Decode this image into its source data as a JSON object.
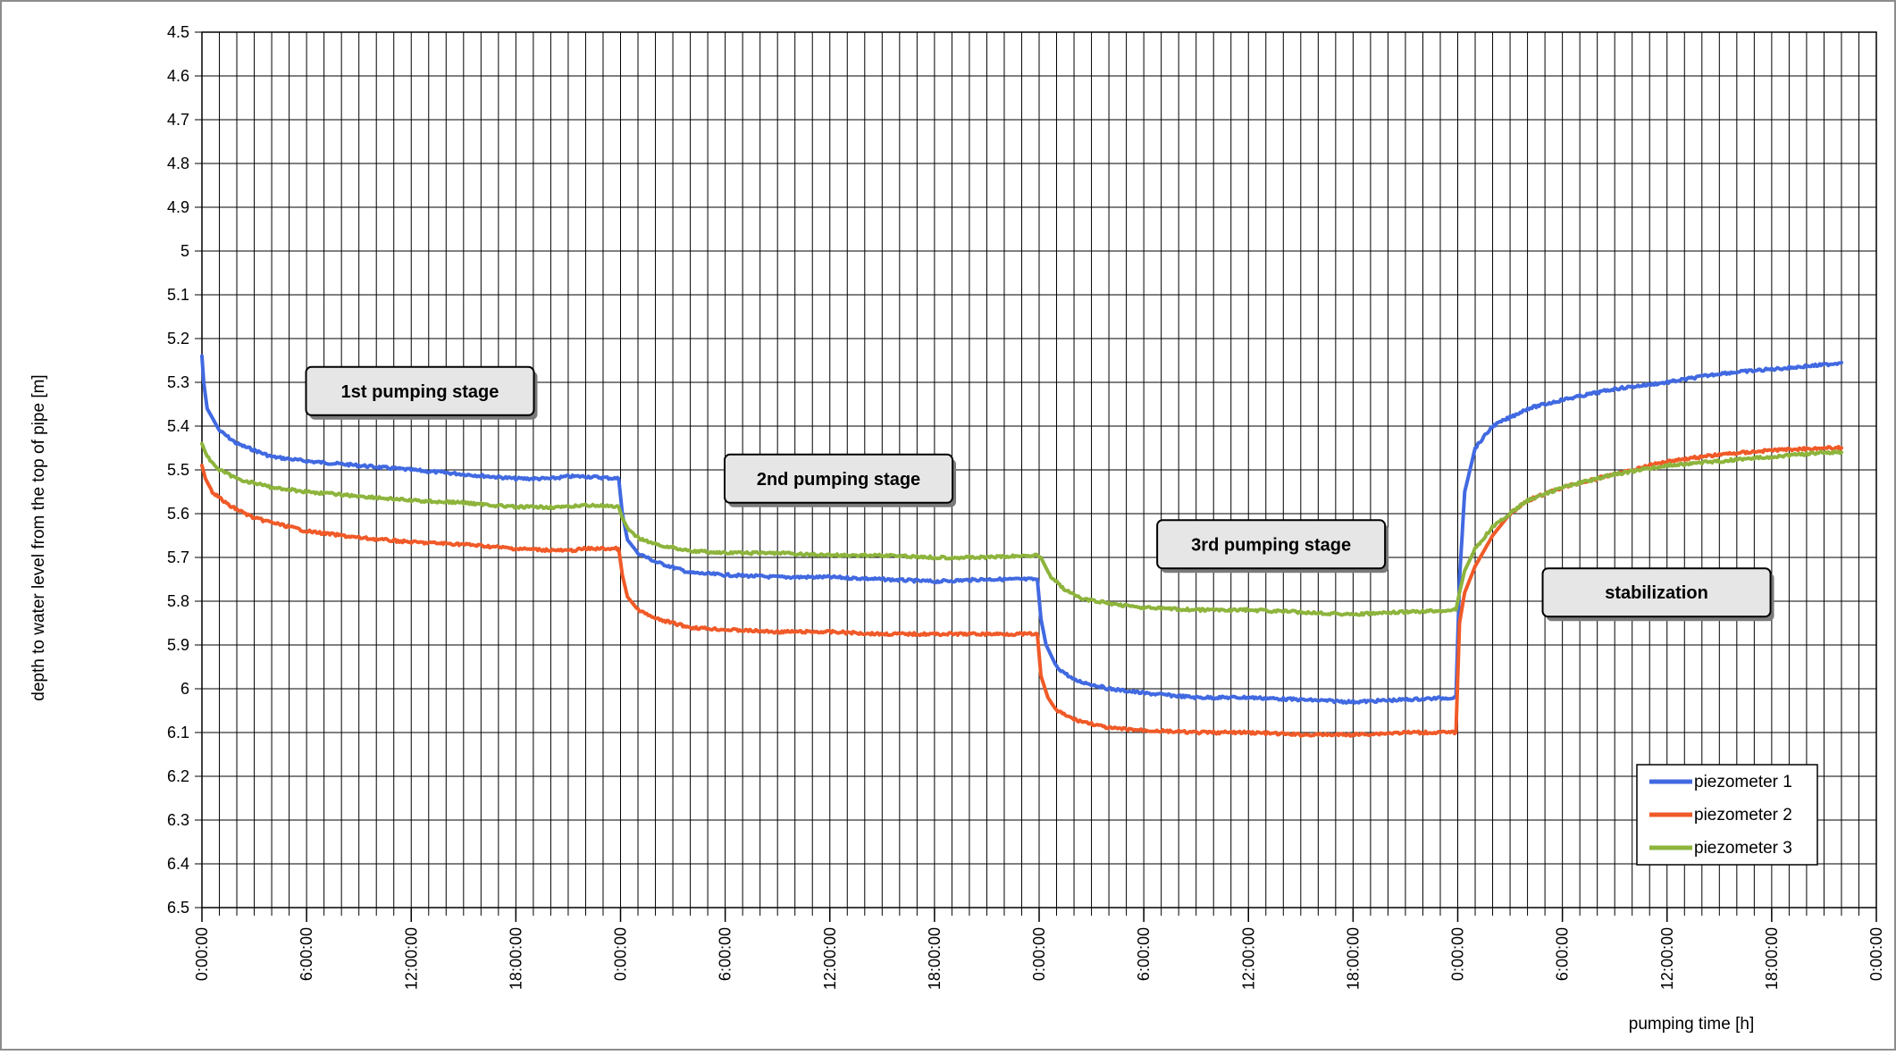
{
  "chart_data": {
    "type": "line",
    "title": "",
    "xlabel": "pumping time [h]",
    "ylabel": "depth to water level from the top of pipe [m]",
    "x_unit": "hours",
    "xlim": [
      0,
      96
    ],
    "ylim": [
      4.5,
      6.5
    ],
    "y_inverted": true,
    "y_ticks": [
      "4.5",
      "4.6",
      "4.7",
      "4.8",
      "4.9",
      "5",
      "5.1",
      "5.2",
      "5.3",
      "5.4",
      "5.5",
      "5.6",
      "5.7",
      "5.8",
      "5.9",
      "6",
      "6.1",
      "6.2",
      "6.3",
      "6.4",
      "6.5"
    ],
    "x_tick_labels": [
      "0:00:00",
      "6:00:00",
      "12:00:00",
      "18:00:00",
      "0:00:00",
      "6:00:00",
      "12:00:00",
      "18:00:00",
      "0:00:00",
      "6:00:00",
      "12:00:00",
      "18:00:00",
      "0:00:00",
      "6:00:00",
      "12:00:00",
      "18:00:00",
      "0:00:00"
    ],
    "x_tick_values": [
      0,
      6,
      12,
      18,
      24,
      30,
      36,
      42,
      48,
      54,
      60,
      66,
      72,
      78,
      84,
      90,
      96
    ],
    "grid": true,
    "legend_position": "bottom-right",
    "annotations": [
      {
        "text": "1st pumping stage",
        "x": 12.5,
        "y": 5.32
      },
      {
        "text": "2nd pumping stage",
        "x": 36.5,
        "y": 5.52
      },
      {
        "text": "3rd pumping stage",
        "x": 61.3,
        "y": 5.67
      },
      {
        "text": "stabilization",
        "x": 83.4,
        "y": 5.78
      }
    ],
    "series": [
      {
        "name": "piezometer 1",
        "color": "#4169e1",
        "points": [
          [
            0,
            5.24
          ],
          [
            0.1,
            5.3
          ],
          [
            0.3,
            5.36
          ],
          [
            1,
            5.41
          ],
          [
            2,
            5.44
          ],
          [
            4,
            5.47
          ],
          [
            6,
            5.48
          ],
          [
            9,
            5.49
          ],
          [
            12,
            5.5
          ],
          [
            15,
            5.51
          ],
          [
            18,
            5.52
          ],
          [
            20,
            5.52
          ],
          [
            21,
            5.515
          ],
          [
            22,
            5.515
          ],
          [
            23.9,
            5.52
          ],
          [
            24.1,
            5.6
          ],
          [
            24.4,
            5.66
          ],
          [
            25,
            5.69
          ],
          [
            26,
            5.71
          ],
          [
            28,
            5.735
          ],
          [
            30,
            5.74
          ],
          [
            33,
            5.745
          ],
          [
            36,
            5.745
          ],
          [
            39,
            5.75
          ],
          [
            42,
            5.755
          ],
          [
            45,
            5.75
          ],
          [
            47.9,
            5.75
          ],
          [
            48.1,
            5.84
          ],
          [
            48.4,
            5.9
          ],
          [
            49,
            5.95
          ],
          [
            50,
            5.98
          ],
          [
            52,
            6.0
          ],
          [
            54,
            6.01
          ],
          [
            57,
            6.02
          ],
          [
            60,
            6.02
          ],
          [
            63,
            6.025
          ],
          [
            66,
            6.03
          ],
          [
            69,
            6.025
          ],
          [
            71.9,
            6.02
          ],
          [
            72.1,
            5.75
          ],
          [
            72.4,
            5.55
          ],
          [
            73,
            5.45
          ],
          [
            74,
            5.4
          ],
          [
            76,
            5.36
          ],
          [
            78,
            5.34
          ],
          [
            81,
            5.315
          ],
          [
            84,
            5.3
          ],
          [
            87,
            5.28
          ],
          [
            90,
            5.27
          ],
          [
            93,
            5.26
          ],
          [
            94,
            5.255
          ]
        ]
      },
      {
        "name": "piezometer 2",
        "color": "#f05a28",
        "points": [
          [
            0,
            5.49
          ],
          [
            0.2,
            5.52
          ],
          [
            0.6,
            5.55
          ],
          [
            1.5,
            5.58
          ],
          [
            3,
            5.61
          ],
          [
            6,
            5.64
          ],
          [
            9,
            5.655
          ],
          [
            12,
            5.665
          ],
          [
            15,
            5.67
          ],
          [
            18,
            5.68
          ],
          [
            21,
            5.685
          ],
          [
            22,
            5.68
          ],
          [
            23.9,
            5.68
          ],
          [
            24.1,
            5.74
          ],
          [
            24.4,
            5.79
          ],
          [
            25,
            5.82
          ],
          [
            26,
            5.84
          ],
          [
            28,
            5.86
          ],
          [
            30,
            5.865
          ],
          [
            33,
            5.87
          ],
          [
            36,
            5.87
          ],
          [
            39,
            5.875
          ],
          [
            42,
            5.875
          ],
          [
            45,
            5.875
          ],
          [
            47.9,
            5.875
          ],
          [
            48.1,
            5.97
          ],
          [
            48.5,
            6.02
          ],
          [
            49,
            6.05
          ],
          [
            50,
            6.07
          ],
          [
            52,
            6.09
          ],
          [
            54,
            6.095
          ],
          [
            57,
            6.1
          ],
          [
            60,
            6.1
          ],
          [
            63,
            6.105
          ],
          [
            66,
            6.105
          ],
          [
            69,
            6.1
          ],
          [
            71.9,
            6.1
          ],
          [
            72.1,
            5.85
          ],
          [
            72.4,
            5.78
          ],
          [
            73,
            5.72
          ],
          [
            74,
            5.65
          ],
          [
            75,
            5.6
          ],
          [
            76,
            5.57
          ],
          [
            78,
            5.54
          ],
          [
            81,
            5.51
          ],
          [
            84,
            5.48
          ],
          [
            87,
            5.465
          ],
          [
            90,
            5.455
          ],
          [
            93,
            5.45
          ],
          [
            94,
            5.45
          ]
        ]
      },
      {
        "name": "piezometer 3",
        "color": "#8db43c",
        "points": [
          [
            0,
            5.44
          ],
          [
            0.3,
            5.47
          ],
          [
            1,
            5.5
          ],
          [
            2,
            5.52
          ],
          [
            4,
            5.54
          ],
          [
            6,
            5.55
          ],
          [
            9,
            5.56
          ],
          [
            12,
            5.57
          ],
          [
            15,
            5.575
          ],
          [
            18,
            5.585
          ],
          [
            21,
            5.585
          ],
          [
            22,
            5.58
          ],
          [
            23.9,
            5.585
          ],
          [
            24.1,
            5.61
          ],
          [
            24.5,
            5.64
          ],
          [
            25,
            5.655
          ],
          [
            26,
            5.67
          ],
          [
            28,
            5.685
          ],
          [
            30,
            5.69
          ],
          [
            33,
            5.69
          ],
          [
            36,
            5.695
          ],
          [
            39,
            5.695
          ],
          [
            42,
            5.7
          ],
          [
            45,
            5.7
          ],
          [
            47.9,
            5.695
          ],
          [
            48.1,
            5.7
          ],
          [
            48.6,
            5.74
          ],
          [
            49.5,
            5.775
          ],
          [
            50.5,
            5.795
          ],
          [
            52,
            5.805
          ],
          [
            54,
            5.815
          ],
          [
            57,
            5.82
          ],
          [
            60,
            5.82
          ],
          [
            63,
            5.825
          ],
          [
            66,
            5.83
          ],
          [
            69,
            5.825
          ],
          [
            71.9,
            5.82
          ],
          [
            72.1,
            5.78
          ],
          [
            72.4,
            5.73
          ],
          [
            73,
            5.68
          ],
          [
            74,
            5.63
          ],
          [
            75,
            5.6
          ],
          [
            76,
            5.57
          ],
          [
            78,
            5.54
          ],
          [
            81,
            5.51
          ],
          [
            84,
            5.49
          ],
          [
            87,
            5.48
          ],
          [
            90,
            5.47
          ],
          [
            93,
            5.46
          ],
          [
            94,
            5.46
          ]
        ]
      }
    ]
  }
}
